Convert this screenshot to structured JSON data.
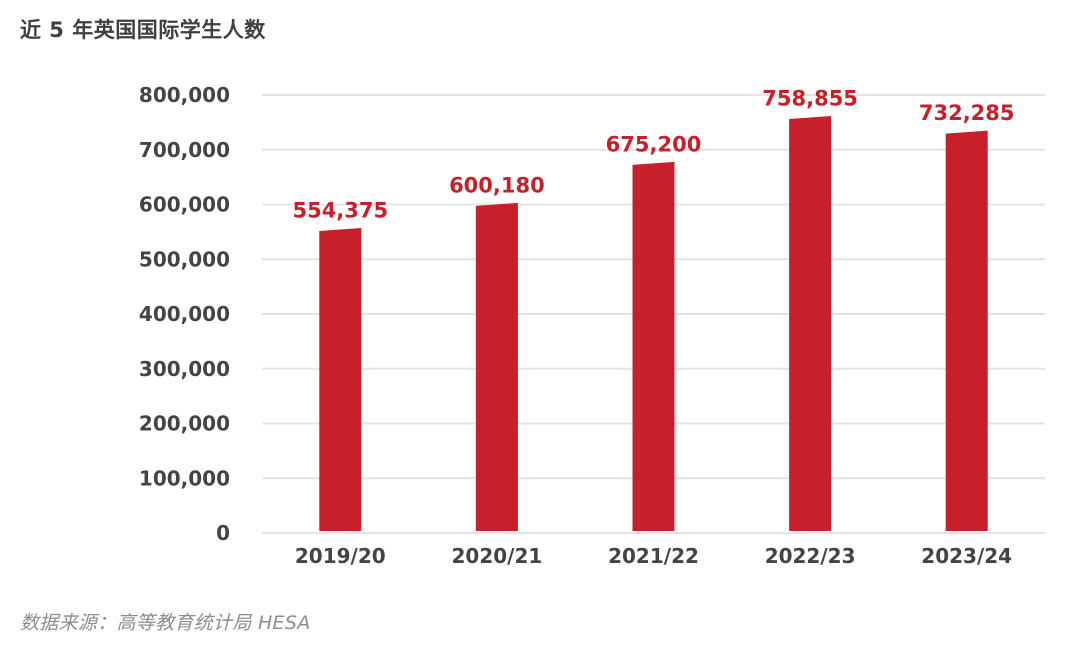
{
  "title": "近 5 年英国国际学生人数",
  "source": "数据来源：高等教育统计局 HESA",
  "colors": {
    "bar": "#c8202b",
    "label": "#c8202b",
    "grid": "#e4e4e4",
    "axis_text": "#444444"
  },
  "chart_data": {
    "type": "bar",
    "title": "近 5 年英国国际学生人数",
    "xlabel": "",
    "ylabel": "",
    "categories": [
      "2019/20",
      "2020/21",
      "2021/22",
      "2022/23",
      "2023/24"
    ],
    "values": [
      554375,
      600180,
      675200,
      758855,
      732285
    ],
    "value_labels": [
      "554,375",
      "600,180",
      "675,200",
      "758,855",
      "732,285"
    ],
    "ylim": [
      0,
      800000
    ],
    "yticks": [
      0,
      100000,
      200000,
      300000,
      400000,
      500000,
      600000,
      700000,
      800000
    ],
    "ytick_labels": [
      "0",
      "100,000",
      "200,000",
      "300,000",
      "400,000",
      "500,000",
      "600,000",
      "700,000",
      "800,000"
    ],
    "grid": true,
    "legend": "none"
  }
}
